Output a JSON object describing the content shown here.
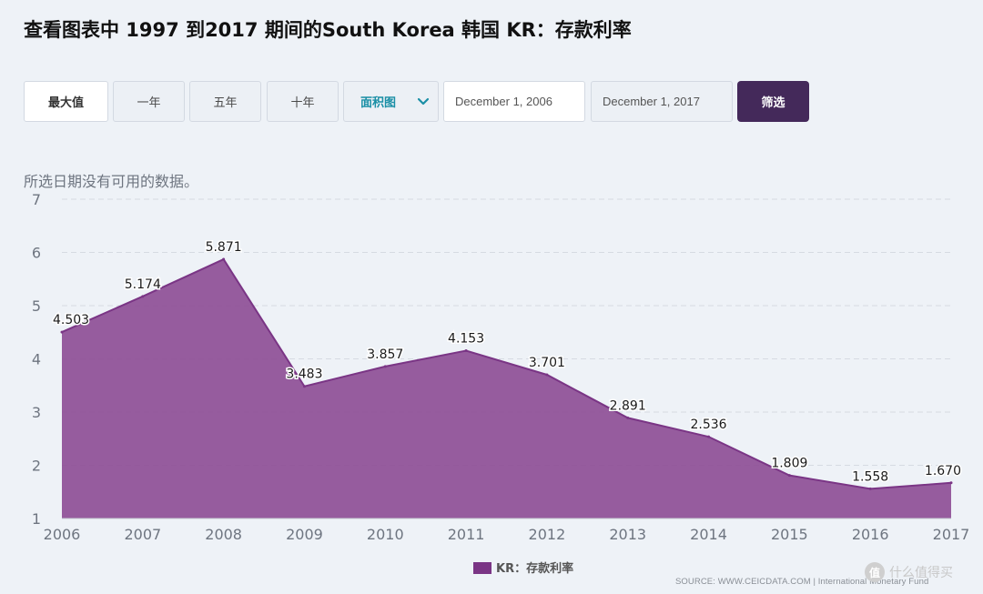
{
  "page": {
    "title": "查看图表中 1997 到2017 期间的South Korea 韩国 KR：存款利率",
    "no_data_message": "所选日期没有可用的数据。",
    "source": "SOURCE: WWW.CEICDATA.COM | International Monetary Fund",
    "watermark": "什么值得买",
    "watermark_badge": "值"
  },
  "toolbar": {
    "max_label": "最大值",
    "one_year_label": "一年",
    "five_year_label": "五年",
    "ten_year_label": "十年",
    "chart_type_value": "面积图",
    "start_date": "December 1, 2006",
    "end_date": "December 1, 2017",
    "filter_label": "筛选"
  },
  "colors": {
    "area_fill": "#8e4f96",
    "area_line": "#7a3585",
    "filter_bg": "#44295a",
    "legend_swatch": "#7a3585",
    "select_text": "#1a8fa6"
  },
  "chart_data": {
    "type": "area",
    "title": "",
    "xlabel": "",
    "ylabel": "",
    "x": [
      "2006",
      "2007",
      "2008",
      "2009",
      "2010",
      "2011",
      "2012",
      "2013",
      "2014",
      "2015",
      "2016",
      "2017"
    ],
    "series": [
      {
        "name": "KR：存款利率",
        "values": [
          4.503,
          5.174,
          5.871,
          3.483,
          3.857,
          4.153,
          3.701,
          2.891,
          2.536,
          1.809,
          1.558,
          1.67
        ],
        "labels": [
          "4.503",
          "5.174",
          "5.871",
          "3.483",
          "3.857",
          "4.153",
          "3.701",
          "2.891",
          "2.536",
          "1.809",
          "1.558",
          "1.670"
        ]
      }
    ],
    "ylim": [
      1,
      7
    ],
    "yticks": [
      "1",
      "2",
      "3",
      "4",
      "5",
      "6",
      "7"
    ],
    "grid": true,
    "legend_position": "bottom-center"
  }
}
